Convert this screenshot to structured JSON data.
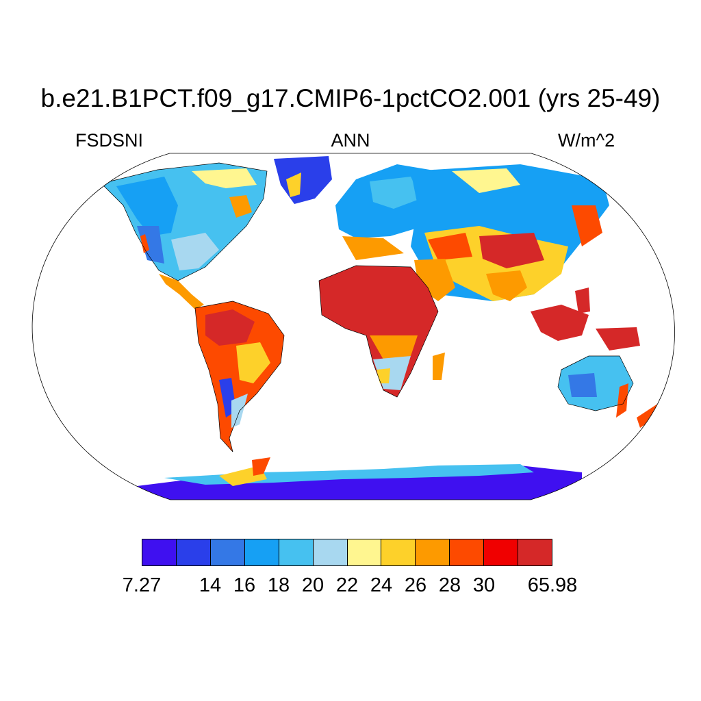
{
  "title": "b.e21.B1PCT.f09_g17.CMIP6-1pctCO2.001 (yrs 25-49)",
  "variable": "FSDSNI",
  "season": "ANN",
  "units": "W/m^2",
  "colorbar": {
    "colors": [
      "#3f10f0",
      "#2a3fea",
      "#3478e6",
      "#16a0f4",
      "#46c1f0",
      "#a8d8f0",
      "#fff690",
      "#fdd12a",
      "#fd9a00",
      "#fd4a00",
      "#f00000",
      "#d52828"
    ],
    "tick_labels": [
      "7.27",
      "14",
      "16",
      "18",
      "20",
      "22",
      "24",
      "26",
      "28",
      "30",
      "65.98"
    ],
    "tick_boundary_index": [
      0,
      2,
      3,
      4,
      5,
      6,
      7,
      8,
      9,
      10,
      12
    ]
  }
}
